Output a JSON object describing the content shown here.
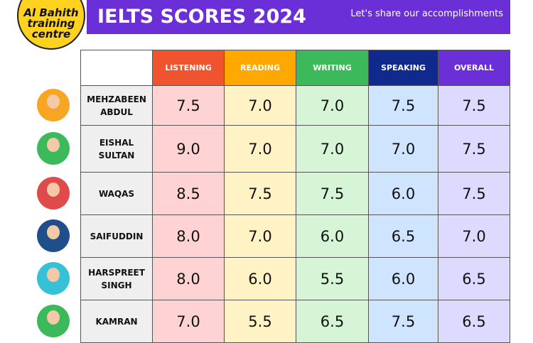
{
  "logo": {
    "lines": [
      "Al Bahith",
      "training",
      "centre"
    ]
  },
  "header": {
    "title": "IELTS SCORES 2024",
    "subtitle": "Let's share our accomplishments"
  },
  "table": {
    "columns": [
      "LISTENING",
      "READING",
      "WRITING",
      "SPEAKING",
      "OVERALL"
    ],
    "rows": [
      {
        "name": "MEHZABEEN ABDUL",
        "scores": [
          "7.5",
          "7.0",
          "7.0",
          "7.5",
          "7.5"
        ]
      },
      {
        "name": "EISHAL SULTAN",
        "scores": [
          "9.0",
          "7.0",
          "7.0",
          "7.0",
          "7.5"
        ]
      },
      {
        "name": "WAQAS",
        "scores": [
          "8.5",
          "7.5",
          "7.5",
          "6.0",
          "7.5"
        ]
      },
      {
        "name": "SAIFUDDIN",
        "scores": [
          "8.0",
          "7.0",
          "6.0",
          "6.5",
          "7.0"
        ]
      },
      {
        "name": "HARSPREET SINGH",
        "scores": [
          "8.0",
          "6.0",
          "5.5",
          "6.0",
          "6.5"
        ]
      },
      {
        "name": "KAMRAN",
        "scores": [
          "7.0",
          "5.5",
          "6.5",
          "7.5",
          "6.5"
        ]
      }
    ]
  }
}
